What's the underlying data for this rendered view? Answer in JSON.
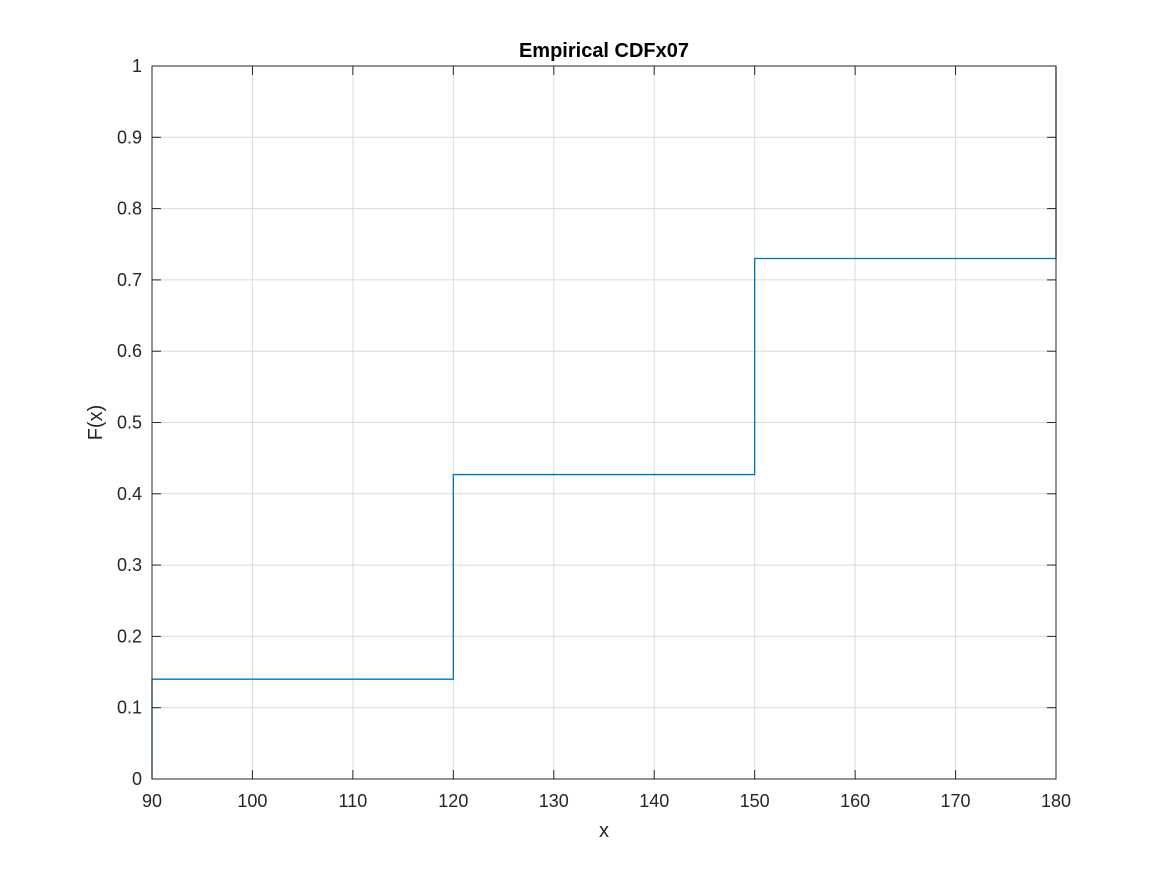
{
  "chart_data": {
    "type": "line",
    "title": "Empirical CDFx07",
    "xlabel": "x",
    "ylabel": "F(x)",
    "xlim": [
      90,
      180
    ],
    "ylim": [
      0,
      1
    ],
    "xticks": [
      90,
      100,
      110,
      120,
      130,
      140,
      150,
      160,
      170,
      180
    ],
    "yticks": [
      0,
      0.1,
      0.2,
      0.3,
      0.4,
      0.5,
      0.6,
      0.7,
      0.8,
      0.9,
      1
    ],
    "ytick_labels": [
      "0",
      "0.1",
      "0.2",
      "0.3",
      "0.4",
      "0.5",
      "0.6",
      "0.7",
      "0.8",
      "0.9",
      "1"
    ],
    "grid": true,
    "step": true,
    "series": [
      {
        "x": [
          90,
          90,
          120,
          120,
          150,
          150,
          180,
          180
        ],
        "y": [
          0,
          0.14,
          0.14,
          0.427,
          0.427,
          0.73,
          0.73,
          1
        ],
        "color": "#0072BD"
      }
    ]
  }
}
